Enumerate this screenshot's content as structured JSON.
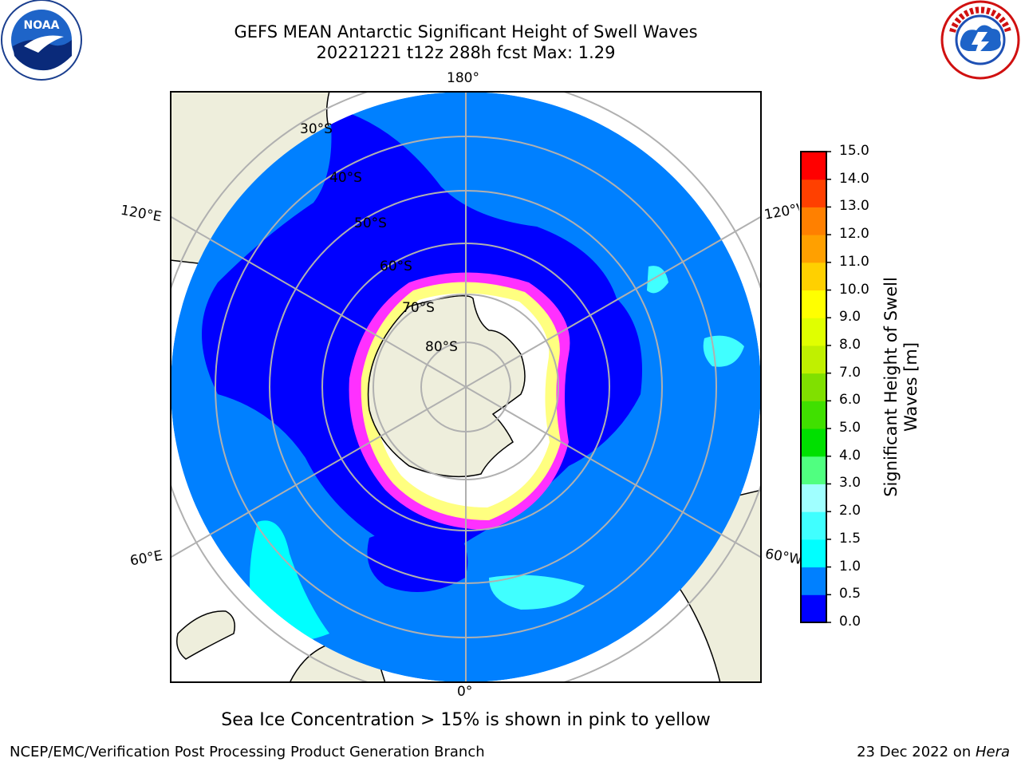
{
  "header": {
    "title_line1": "GEFS MEAN Antarctic Significant Height of Swell Waves",
    "title_line2": "20221221 t12z 288h fcst   Max: 1.29"
  },
  "logos": {
    "left": "noara-logo",
    "right": "nws-logo"
  },
  "map": {
    "projection": "south-polar-stereographic",
    "longitude_labels": {
      "top": "180°",
      "bottom": "0°",
      "upper_left": "120°E",
      "upper_right": "120°W",
      "lower_left": "60°E",
      "lower_right": "60°W"
    },
    "latitude_labels": [
      "30°S",
      "40°S",
      "50°S",
      "60°S",
      "70°S",
      "80°S"
    ],
    "colors": {
      "ocean_deep": "#0080ff",
      "ocean_low": "#0000ff",
      "ocean_cyan": "#00ffff",
      "land": "#eeeedc",
      "ice_pink": "#ff00ff",
      "ice_yellow": "#ffff66",
      "grid": "#b0b0b0"
    }
  },
  "colorbar": {
    "title_line1": "Significant Height of Swell",
    "title_line2": "Waves [m]",
    "ticks": [
      "0.0",
      "0.5",
      "1.0",
      "1.5",
      "2.0",
      "3.0",
      "4.0",
      "5.0",
      "6.0",
      "7.0",
      "8.0",
      "9.0",
      "10.0",
      "11.0",
      "12.0",
      "13.0",
      "14.0",
      "15.0"
    ],
    "colors": [
      "#0000ff",
      "#0080ff",
      "#00ffff",
      "#40ffff",
      "#a0ffff",
      "#50ff80",
      "#00e000",
      "#40e000",
      "#80e000",
      "#c0f000",
      "#e0ff00",
      "#ffff00",
      "#ffd000",
      "#ffa000",
      "#ff8000",
      "#ff4000",
      "#ff0000"
    ]
  },
  "caption": "Sea Ice Concentration > 15% is shown in pink to yellow",
  "footer": {
    "left": "NCEP/EMC/Verification Post Processing Product Generation Branch",
    "right_prefix": "23 Dec 2022 on ",
    "right_machine": "Hera"
  }
}
